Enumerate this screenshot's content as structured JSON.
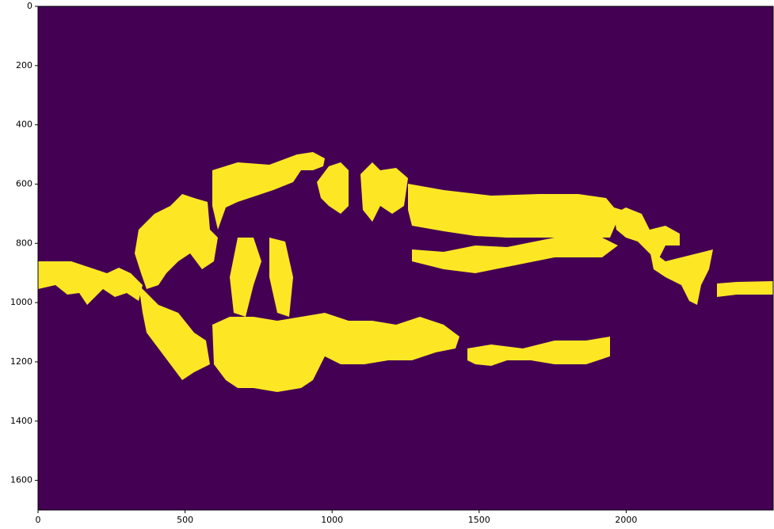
{
  "chart_data": {
    "type": "image",
    "xlim": [
      0,
      2500
    ],
    "ylim": [
      1700,
      0
    ],
    "xticks": [
      0,
      500,
      1000,
      1500,
      2000
    ],
    "yticks": [
      0,
      200,
      400,
      600,
      800,
      1000,
      1200,
      1400,
      1600
    ],
    "colormap": [
      "#440154",
      "#fde725"
    ]
  }
}
